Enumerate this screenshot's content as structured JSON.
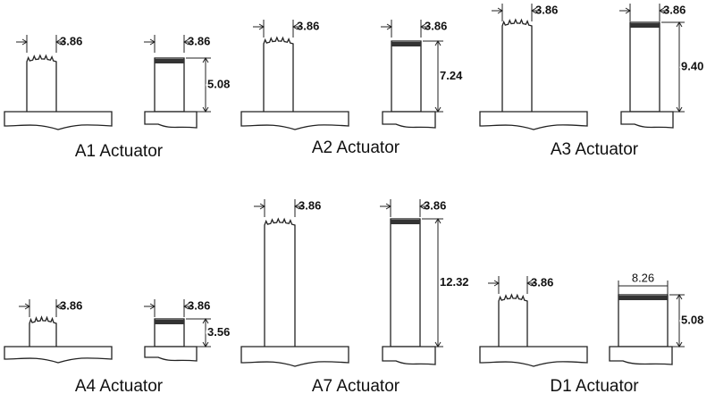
{
  "actuators": [
    {
      "label": "A1 Actuator",
      "side_width": "3.86",
      "front_width": "3.86",
      "height": "5.08"
    },
    {
      "label": "A2 Actuator",
      "side_width": "3.86",
      "front_width": "3.86",
      "height": "7.24"
    },
    {
      "label": "A3 Actuator",
      "side_width": "3.86",
      "front_width": "3.86",
      "height": "9.40"
    },
    {
      "label": "A4 Actuator",
      "side_width": "3.86",
      "front_width": "3.86",
      "height": "3.56"
    },
    {
      "label": "A7 Actuator",
      "side_width": "3.86",
      "front_width": "3.86",
      "height": "12.32"
    },
    {
      "label": "D1 Actuator",
      "side_width": "3.86",
      "front_width": "8.26",
      "height": "5.08"
    }
  ]
}
